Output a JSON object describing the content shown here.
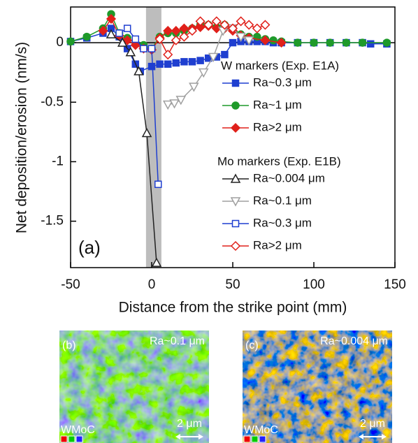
{
  "chart_data": {
    "type": "line",
    "xlabel": "Distance from the strike point (mm)",
    "ylabel": "Net deposition/erosion (nm/s)",
    "annotation": "(a)",
    "xlim": [
      -50,
      150
    ],
    "ylim": [
      -1.89,
      0.3
    ],
    "xticks": [
      -50,
      0,
      50,
      100,
      150
    ],
    "yticks": [
      0,
      -0.5,
      -1,
      -1.5
    ],
    "zero_line": true,
    "shaded_region": [
      -3.5,
      6
    ],
    "series_groups": [
      {
        "name": "W markers (Exp. E1A)",
        "series": [
          {
            "name": "Ra~0.3 μm",
            "color": "#1f3fd0",
            "marker": "square",
            "filled": true,
            "x": [
              -50,
              -40,
              -30,
              -25,
              -20,
              -15,
              -10,
              -7,
              0,
              5,
              10,
              15,
              20,
              25,
              30,
              35,
              40,
              45,
              50,
              55,
              60,
              65,
              70,
              75,
              80,
              90,
              100,
              110,
              120,
              130,
              135,
              145
            ],
            "values": [
              0.01,
              0.04,
              0.08,
              0.12,
              0.05,
              -0.05,
              -0.18,
              -0.24,
              -0.2,
              -0.18,
              -0.18,
              -0.17,
              -0.16,
              -0.16,
              -0.15,
              -0.13,
              -0.12,
              -0.1,
              0.0,
              0.01,
              0.01,
              0.01,
              0.01,
              0.0,
              0.0,
              0.0,
              0.0,
              0.0,
              0.0,
              0.0,
              -0.01,
              -0.01
            ]
          },
          {
            "name": "Ra~1 μm",
            "color": "#1f9a2a",
            "marker": "circle",
            "filled": true,
            "x": [
              -50,
              -40,
              -30,
              -25,
              -20,
              -15,
              -10,
              -5,
              0,
              5,
              10,
              15,
              20,
              25,
              30,
              35,
              40,
              45,
              50,
              55,
              60,
              65,
              70,
              75,
              80,
              90,
              100,
              110,
              120,
              130,
              145
            ],
            "values": [
              0.01,
              0.05,
              0.12,
              0.24,
              0.08,
              0.04,
              0.0,
              -0.02,
              -0.05,
              0.05,
              0.08,
              0.08,
              0.1,
              0.12,
              0.15,
              0.15,
              0.13,
              0.15,
              0.12,
              0.07,
              0.05,
              0.05,
              0.03,
              0.02,
              0.01,
              0.0,
              0.0,
              0.0,
              0.0,
              0.0,
              0.0
            ]
          },
          {
            "name": "Ra>2 μm",
            "color": "#e0201a",
            "marker": "diamond",
            "filled": true,
            "x": [
              -30,
              -25,
              -20,
              -15,
              -10,
              -5,
              0,
              5,
              10,
              15,
              20,
              25,
              30,
              35,
              40,
              45,
              50,
              55,
              60,
              70,
              80
            ],
            "values": [
              0.1,
              0.2,
              0.06,
              0.02,
              -0.02,
              -0.05,
              -0.06,
              0.04,
              0.1,
              0.1,
              0.12,
              0.12,
              0.13,
              0.14,
              0.12,
              0.12,
              0.1,
              0.06,
              0.04,
              0.02,
              0.0
            ]
          }
        ]
      },
      {
        "name": "Mo markers (Exp. E1B)",
        "series": [
          {
            "name": "Ra~0.004 μm",
            "color": "#222222",
            "marker": "triangle",
            "filled": false,
            "x": [
              -25,
              -18,
              -13,
              -8,
              -3,
              3
            ],
            "values": [
              0.07,
              0.0,
              -0.08,
              -0.24,
              -0.76,
              -1.85
            ]
          },
          {
            "name": "Ra~0.1 μm",
            "color": "#a0a0a0",
            "marker": "triangle-down",
            "filled": false,
            "x": [
              10,
              14,
              18,
              26,
              32,
              38,
              44,
              50,
              55,
              60
            ],
            "values": [
              -0.52,
              -0.51,
              -0.48,
              -0.37,
              -0.25,
              -0.12,
              0.1,
              0.12,
              0.05,
              0.02
            ]
          },
          {
            "name": "Ra~0.3 μm",
            "color": "#1f3fd0",
            "marker": "square",
            "filled": false,
            "x": [
              -20,
              -15,
              -10,
              -5,
              0,
              4
            ],
            "values": [
              0.08,
              0.12,
              0.03,
              -0.05,
              -0.05,
              -1.19
            ]
          },
          {
            "name": "Ra>2 μm",
            "color": "#e0201a",
            "marker": "diamond",
            "filled": false,
            "x": [
              5,
              10,
              15,
              20,
              25,
              30,
              35,
              40,
              45,
              50,
              55,
              60,
              65,
              70
            ],
            "values": [
              0.03,
              -0.1,
              0.02,
              0.05,
              0.1,
              0.18,
              0.15,
              0.18,
              0.15,
              0.12,
              0.18,
              0.15,
              0.12,
              0.15
            ]
          }
        ]
      }
    ]
  },
  "panels": [
    {
      "label": "(b)",
      "roughness": "Ra~0.1 μm",
      "elements": "WMoC",
      "scale": "2 μm"
    },
    {
      "label": "(c)",
      "roughness": "Ra~0.004 μm",
      "elements": "WMoC",
      "scale": "2 μm"
    }
  ]
}
